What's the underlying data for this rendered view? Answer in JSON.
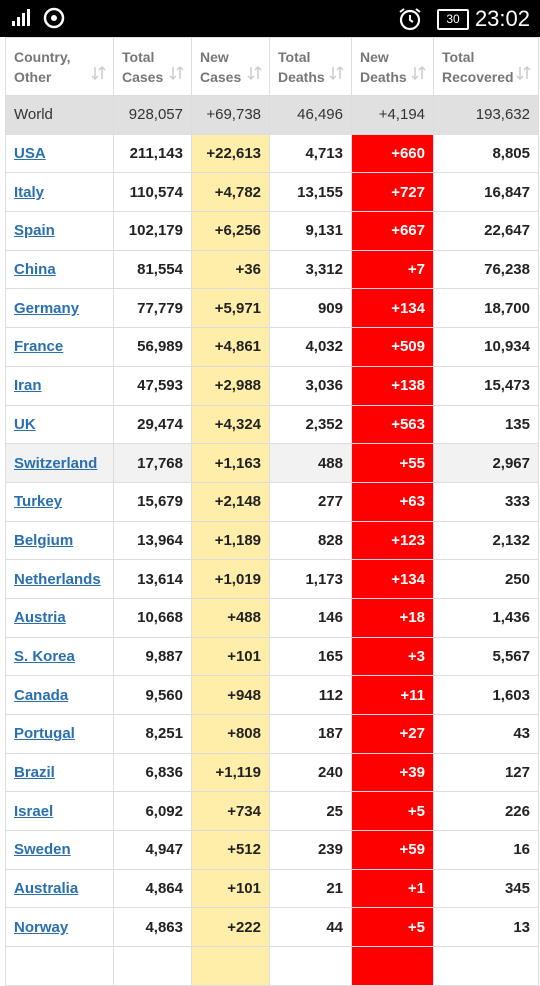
{
  "status_bar": {
    "battery": "30",
    "time": "23:02"
  },
  "table": {
    "headers": [
      [
        "Country,",
        "Other"
      ],
      [
        "Total",
        "Cases"
      ],
      [
        "New",
        "Cases"
      ],
      [
        "Total",
        "Deaths"
      ],
      [
        "New",
        "Deaths"
      ],
      [
        "Total",
        "Recovered"
      ]
    ],
    "world": [
      "World",
      "928,057",
      "+69,738",
      "46,496",
      "+4,194",
      "193,632"
    ],
    "rows": [
      [
        "USA",
        "211,143",
        "+22,613",
        "4,713",
        "+660",
        "8,805"
      ],
      [
        "Italy",
        "110,574",
        "+4,782",
        "13,155",
        "+727",
        "16,847"
      ],
      [
        "Spain",
        "102,179",
        "+6,256",
        "9,131",
        "+667",
        "22,647"
      ],
      [
        "China",
        "81,554",
        "+36",
        "3,312",
        "+7",
        "76,238"
      ],
      [
        "Germany",
        "77,779",
        "+5,971",
        "909",
        "+134",
        "18,700"
      ],
      [
        "France",
        "56,989",
        "+4,861",
        "4,032",
        "+509",
        "10,934"
      ],
      [
        "Iran",
        "47,593",
        "+2,988",
        "3,036",
        "+138",
        "15,473"
      ],
      [
        "UK",
        "29,474",
        "+4,324",
        "2,352",
        "+563",
        "135"
      ],
      [
        "Switzerland",
        "17,768",
        "+1,163",
        "488",
        "+55",
        "2,967"
      ],
      [
        "Turkey",
        "15,679",
        "+2,148",
        "277",
        "+63",
        "333"
      ],
      [
        "Belgium",
        "13,964",
        "+1,189",
        "828",
        "+123",
        "2,132"
      ],
      [
        "Netherlands",
        "13,614",
        "+1,019",
        "1,173",
        "+134",
        "250"
      ],
      [
        "Austria",
        "10,668",
        "+488",
        "146",
        "+18",
        "1,436"
      ],
      [
        "S. Korea",
        "9,887",
        "+101",
        "165",
        "+3",
        "5,567"
      ],
      [
        "Canada",
        "9,560",
        "+948",
        "112",
        "+11",
        "1,603"
      ],
      [
        "Portugal",
        "8,251",
        "+808",
        "187",
        "+27",
        "43"
      ],
      [
        "Brazil",
        "6,836",
        "+1,119",
        "240",
        "+39",
        "127"
      ],
      [
        "Israel",
        "6,092",
        "+734",
        "25",
        "+5",
        "226"
      ],
      [
        "Sweden",
        "4,947",
        "+512",
        "239",
        "+59",
        "16"
      ],
      [
        "Australia",
        "4,864",
        "+101",
        "21",
        "+1",
        "345"
      ],
      [
        "Norway",
        "4,863",
        "+222",
        "44",
        "+5",
        "13"
      ]
    ]
  }
}
